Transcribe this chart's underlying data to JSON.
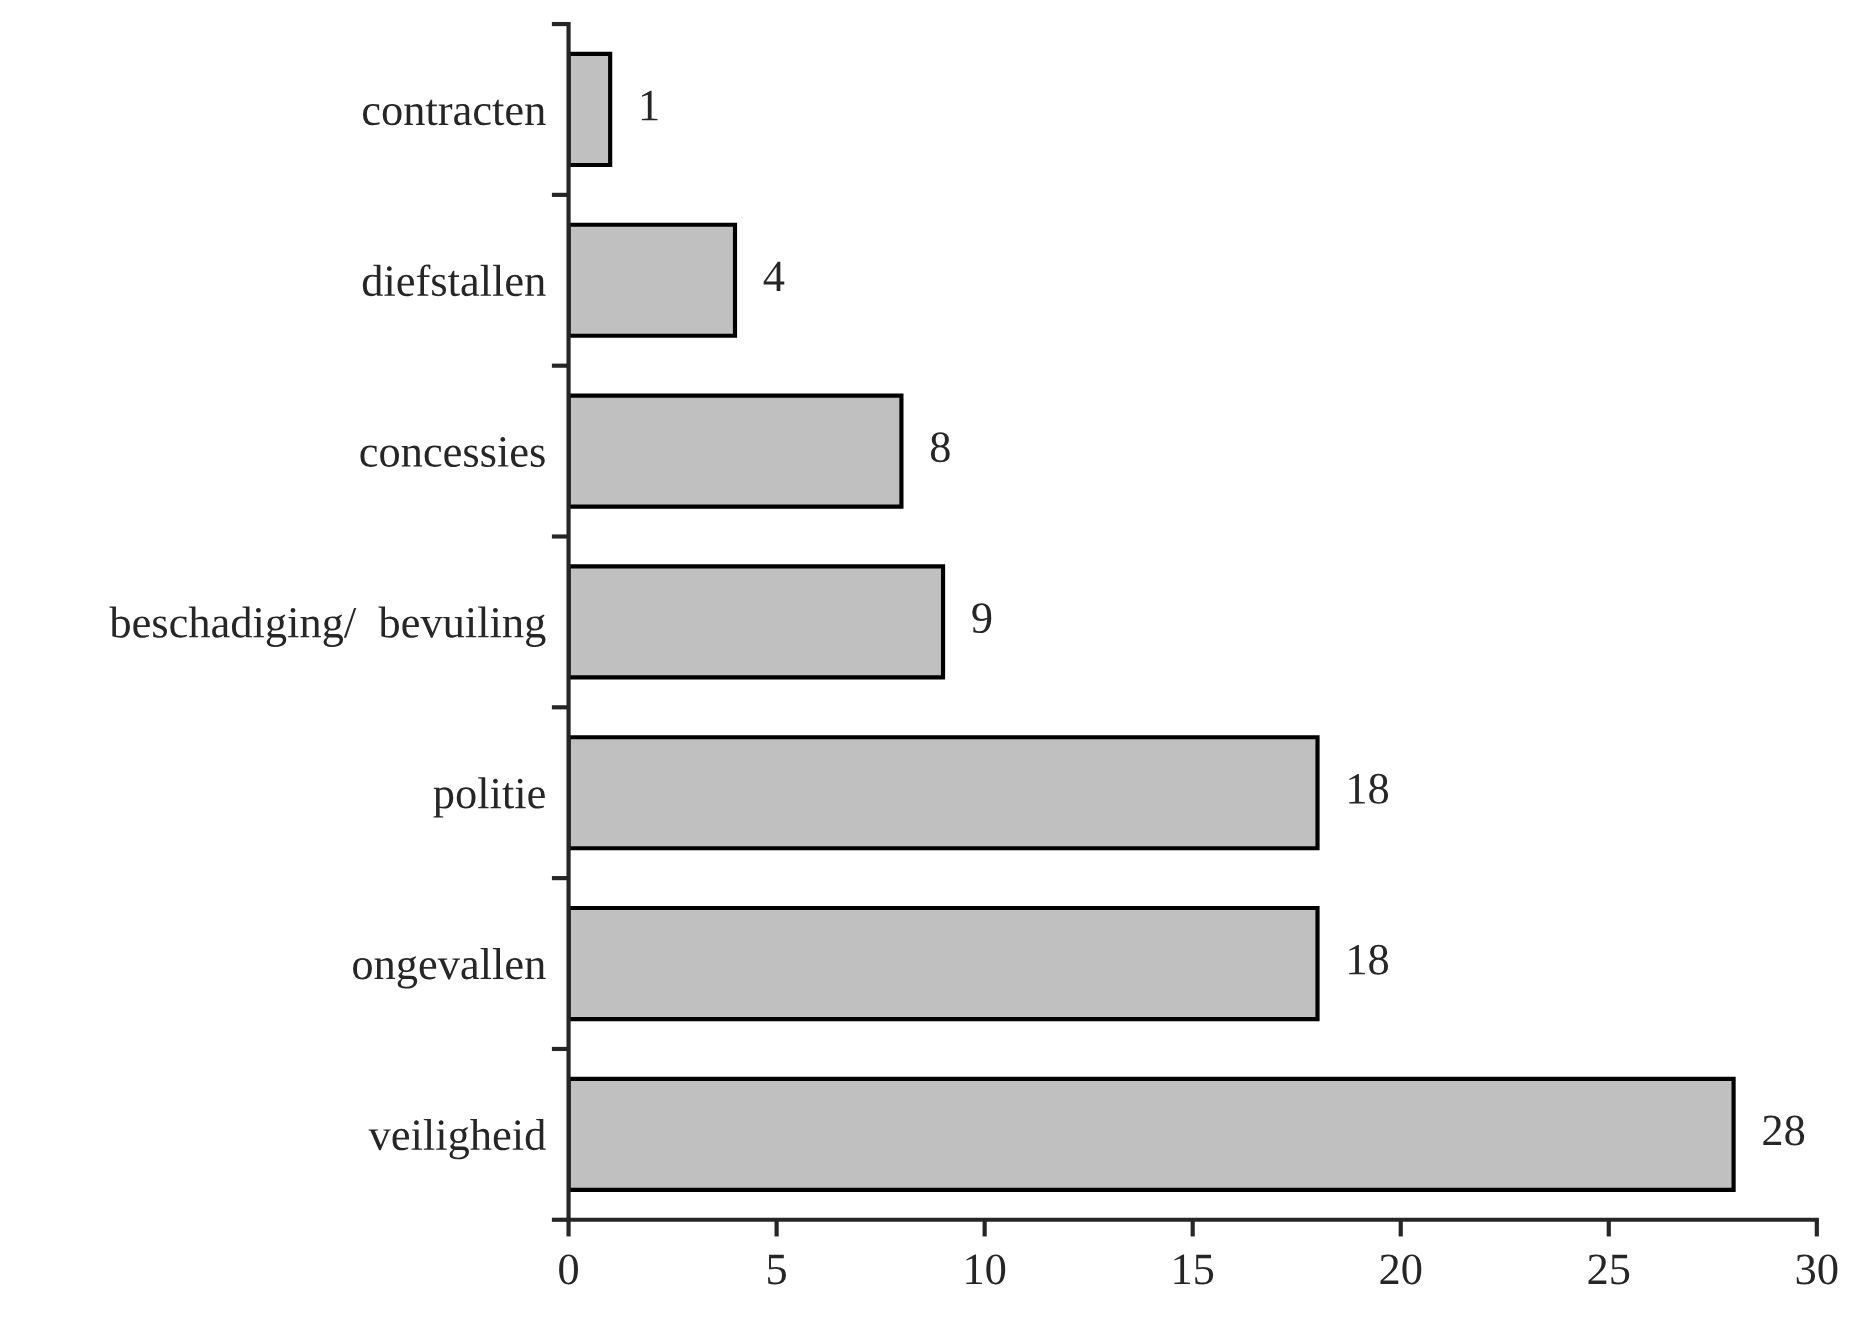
{
  "chart_data": {
    "type": "bar",
    "orientation": "horizontal",
    "categories": [
      "contracten",
      "diefstallen",
      "concessies",
      "beschadiging/  bevuiling",
      "politie",
      "ongevallen",
      "veiligheid"
    ],
    "values": [
      1,
      4,
      8,
      9,
      18,
      18,
      28
    ],
    "color": "#c0c0c0",
    "xlim": [
      0,
      30
    ],
    "xticks": [
      0,
      5,
      10,
      15,
      20,
      25,
      30
    ],
    "data_labels": true,
    "grid": false,
    "legend": false
  }
}
